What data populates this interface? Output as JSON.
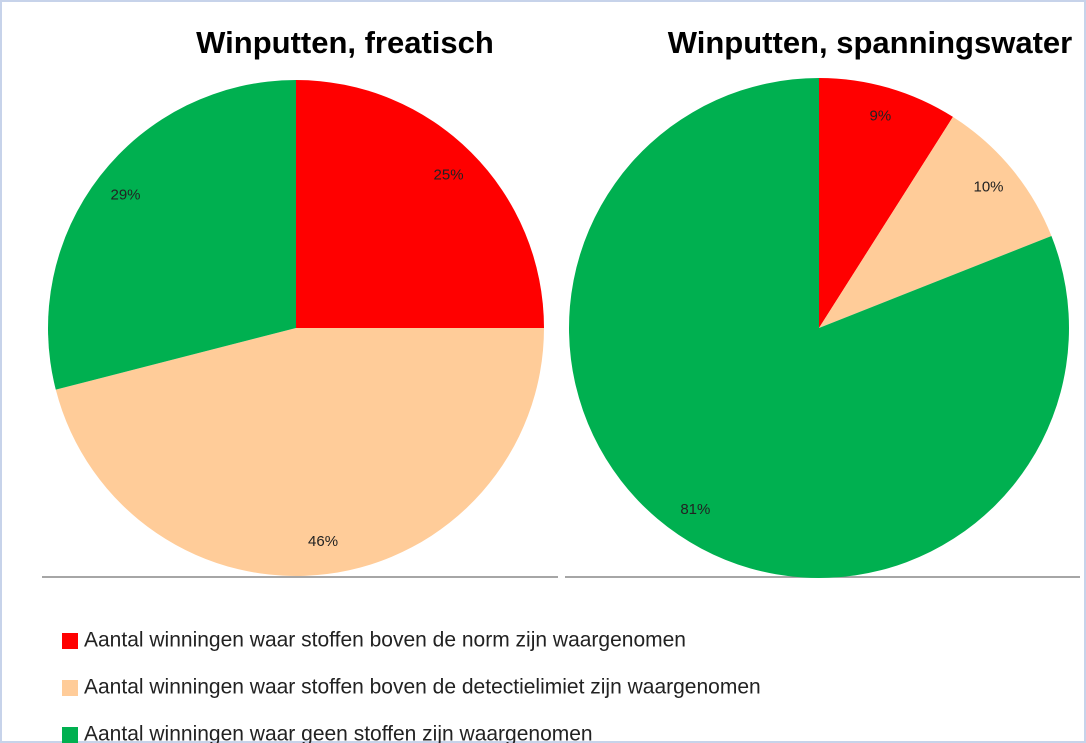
{
  "chart_data": [
    {
      "type": "pie",
      "title": "Winputten, freatisch",
      "values": [
        25,
        46,
        29
      ],
      "value_labels": [
        "25%",
        "46%",
        "29%"
      ],
      "start_angle": 0,
      "direction": "clockwise"
    },
    {
      "type": "pie",
      "title": "Winputten, spanningswater",
      "values": [
        9,
        10,
        81
      ],
      "value_labels": [
        "9%",
        "10%",
        "81%"
      ],
      "start_angle": 0,
      "direction": "clockwise"
    }
  ],
  "legend": {
    "labels": [
      "Aantal winningen waar stoffen boven de norm zijn waargenomen",
      "Aantal winningen waar stoffen boven de detectielimiet zijn waargenomen",
      "Aantal winningen waar geen stoffen zijn waargenomen"
    ],
    "colors": [
      "#ff0000",
      "#ffcc99",
      "#00b050"
    ]
  }
}
